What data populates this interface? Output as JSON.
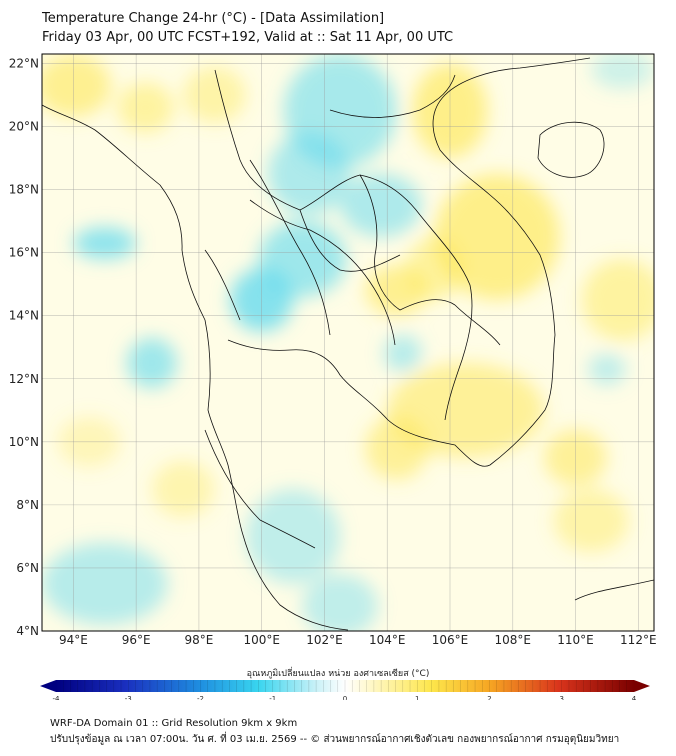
{
  "header": {
    "title_line1": "Temperature Change 24-hr (°C) - [Data Assimilation]",
    "title_line2": "Friday 03 Apr, 00 UTC FCST+192, Valid at :: Sat 11 Apr, 00 UTC"
  },
  "map": {
    "lat_labels": [
      "22°N",
      "20°N",
      "18°N",
      "16°N",
      "14°N",
      "12°N",
      "10°N",
      "8°N",
      "6°N",
      "4°N"
    ],
    "lon_labels": [
      "94°E",
      "96°E",
      "98°E",
      "100°E",
      "102°E",
      "104°E",
      "106°E",
      "108°E",
      "110°E",
      "112°E"
    ],
    "extent": {
      "lon_min": 93,
      "lon_max": 112.5,
      "lat_min": 4,
      "lat_max": 22.3
    },
    "background_color": "#fffde6",
    "warm_color": "#fde64b",
    "cool_color": "#5ed8ef",
    "anomalies": [
      {
        "lon": 94.0,
        "lat": 21.3,
        "type": "warm",
        "rx": 1.2,
        "ry": 1.0,
        "a": 0.55
      },
      {
        "lon": 96.3,
        "lat": 20.6,
        "type": "warm",
        "rx": 0.9,
        "ry": 0.8,
        "a": 0.45
      },
      {
        "lon": 98.5,
        "lat": 21.0,
        "type": "warm",
        "rx": 1.0,
        "ry": 0.9,
        "a": 0.4
      },
      {
        "lon": 102.5,
        "lat": 20.5,
        "type": "cool",
        "rx": 1.8,
        "ry": 1.8,
        "a": 0.55
      },
      {
        "lon": 101.5,
        "lat": 18.5,
        "type": "cool",
        "rx": 1.3,
        "ry": 1.3,
        "a": 0.5
      },
      {
        "lon": 103.8,
        "lat": 17.5,
        "type": "cool",
        "rx": 1.3,
        "ry": 1.0,
        "a": 0.5
      },
      {
        "lon": 100.0,
        "lat": 14.5,
        "type": "cool",
        "rx": 1.0,
        "ry": 1.0,
        "a": 0.75
      },
      {
        "lon": 101.3,
        "lat": 15.8,
        "type": "cool",
        "rx": 1.4,
        "ry": 1.2,
        "a": 0.6
      },
      {
        "lon": 95.0,
        "lat": 16.3,
        "type": "cool",
        "rx": 1.0,
        "ry": 0.5,
        "a": 0.7
      },
      {
        "lon": 96.5,
        "lat": 12.5,
        "type": "cool",
        "rx": 0.8,
        "ry": 0.8,
        "a": 0.6
      },
      {
        "lon": 104.3,
        "lat": 14.8,
        "type": "warm",
        "rx": 1.0,
        "ry": 0.8,
        "a": 0.55
      },
      {
        "lon": 105.5,
        "lat": 15.5,
        "type": "warm",
        "rx": 0.9,
        "ry": 1.0,
        "a": 0.45
      },
      {
        "lon": 106.0,
        "lat": 20.5,
        "type": "warm",
        "rx": 1.2,
        "ry": 1.5,
        "a": 0.6
      },
      {
        "lon": 107.5,
        "lat": 16.5,
        "type": "warm",
        "rx": 2.0,
        "ry": 2.0,
        "a": 0.6
      },
      {
        "lon": 106.5,
        "lat": 11.0,
        "type": "warm",
        "rx": 2.5,
        "ry": 1.5,
        "a": 0.5
      },
      {
        "lon": 104.3,
        "lat": 9.8,
        "type": "warm",
        "rx": 1.0,
        "ry": 1.0,
        "a": 0.5
      },
      {
        "lon": 110.0,
        "lat": 9.5,
        "type": "warm",
        "rx": 1.0,
        "ry": 0.9,
        "a": 0.5
      },
      {
        "lon": 111.5,
        "lat": 14.5,
        "type": "warm",
        "rx": 1.3,
        "ry": 1.3,
        "a": 0.45
      },
      {
        "lon": 110.5,
        "lat": 7.5,
        "type": "warm",
        "rx": 1.2,
        "ry": 1.0,
        "a": 0.4
      },
      {
        "lon": 104.5,
        "lat": 12.8,
        "type": "cool",
        "rx": 0.6,
        "ry": 0.6,
        "a": 0.45
      },
      {
        "lon": 101.0,
        "lat": 7.0,
        "type": "cool",
        "rx": 1.5,
        "ry": 1.5,
        "a": 0.4
      },
      {
        "lon": 95.0,
        "lat": 5.5,
        "type": "cool",
        "rx": 2.0,
        "ry": 1.3,
        "a": 0.45
      },
      {
        "lon": 102.5,
        "lat": 4.8,
        "type": "cool",
        "rx": 1.2,
        "ry": 1.0,
        "a": 0.4
      },
      {
        "lon": 111.0,
        "lat": 12.3,
        "type": "cool",
        "rx": 0.6,
        "ry": 0.5,
        "a": 0.4
      },
      {
        "lon": 111.5,
        "lat": 21.8,
        "type": "cool",
        "rx": 1.0,
        "ry": 0.6,
        "a": 0.3
      },
      {
        "lon": 97.5,
        "lat": 8.5,
        "type": "warm",
        "rx": 1.0,
        "ry": 0.9,
        "a": 0.35
      },
      {
        "lon": 94.5,
        "lat": 10.0,
        "type": "warm",
        "rx": 1.0,
        "ry": 0.8,
        "a": 0.3
      }
    ]
  },
  "colorbar": {
    "title": "อุณหภูมิเปลี่ยนแปลง หน่วย องศาเซลเซียส (°C)",
    "min": -4,
    "max": 4,
    "tick_labels": [
      "-4",
      "-3",
      "-2",
      "-1",
      "0",
      "1",
      "2",
      "3",
      "4"
    ]
  },
  "footer": {
    "line1": "WRF-DA Domain 01 :: Grid Resolution 9km x 9km",
    "line2": "ปรับปรุงข้อมูล ณ เวลา 07:00น. วัน ศ. ที่ 03 เม.ย. 2569 -- © ส่วนพยากรณ์อากาศเชิงตัวเลข กองพยากรณ์อากาศ กรมอุตุนิยมวิทยา"
  }
}
